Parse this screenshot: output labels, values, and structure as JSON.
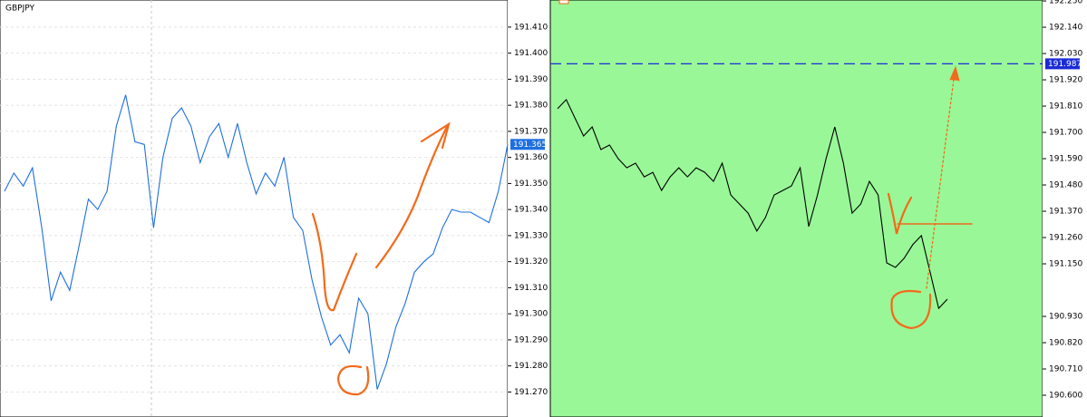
{
  "chart_data": [
    {
      "type": "line",
      "title": "GBPJPY",
      "background": "#ffffff",
      "grid": true,
      "current_price": 191.365,
      "ylim": [
        191.2604,
        191.4204
      ],
      "yticks": [
        {
          "value": 191.41,
          "label": "191.410"
        },
        {
          "value": 191.4,
          "label": "191.400"
        },
        {
          "value": 191.39,
          "label": "191.390"
        },
        {
          "value": 191.38,
          "label": "191.380"
        },
        {
          "value": 191.37,
          "label": "191.370"
        },
        {
          "value": 191.36,
          "label": "191.360"
        },
        {
          "value": 191.35,
          "label": "191.350"
        },
        {
          "value": 191.34,
          "label": "191.340"
        },
        {
          "value": 191.33,
          "label": "191.330"
        },
        {
          "value": 191.32,
          "label": "191.320"
        },
        {
          "value": 191.31,
          "label": "191.310"
        },
        {
          "value": 191.3,
          "label": "191.300"
        },
        {
          "value": 191.29,
          "label": "191.290"
        },
        {
          "value": 191.28,
          "label": "191.280"
        },
        {
          "value": 191.27,
          "label": "191.270"
        }
      ],
      "series": [
        {
          "color": "#1e6fe0",
          "values": [
            191.347,
            191.354,
            191.349,
            191.356,
            191.333,
            191.305,
            191.316,
            191.309,
            191.326,
            191.344,
            191.34,
            191.347,
            191.372,
            191.384,
            191.366,
            191.365,
            191.333,
            191.36,
            191.375,
            191.379,
            191.372,
            191.358,
            191.368,
            191.373,
            191.36,
            191.373,
            191.358,
            191.346,
            191.354,
            191.349,
            191.36,
            191.337,
            191.332,
            191.313,
            191.299,
            191.288,
            191.292,
            191.285,
            191.306,
            191.3,
            191.271,
            191.281,
            191.295,
            191.304,
            191.316,
            191.32,
            191.323,
            191.333,
            191.34,
            191.339,
            191.339,
            191.337,
            191.335,
            191.347,
            191.365
          ]
        }
      ]
    },
    {
      "type": "line",
      "background": "#99f797",
      "grid": false,
      "level": 191.987,
      "level_color": "#1a2bd6",
      "ylim": [
        190.509,
        192.254
      ],
      "yticks": [
        {
          "value": 192.25,
          "label": "192.250"
        },
        {
          "value": 192.14,
          "label": "192.140"
        },
        {
          "value": 192.03,
          "label": "192.030"
        },
        {
          "value": 191.92,
          "label": "191.920"
        },
        {
          "value": 191.81,
          "label": "191.810"
        },
        {
          "value": 191.7,
          "label": "191.700"
        },
        {
          "value": 191.59,
          "label": "191.590"
        },
        {
          "value": 191.48,
          "label": "191.480"
        },
        {
          "value": 191.37,
          "label": "191.370"
        },
        {
          "value": 191.26,
          "label": "191.260"
        },
        {
          "value": 191.15,
          "label": "191.150"
        },
        {
          "value": 190.93,
          "label": "190.930"
        },
        {
          "value": 190.82,
          "label": "190.820"
        },
        {
          "value": 190.71,
          "label": "190.710"
        },
        {
          "value": 190.6,
          "label": "190.600"
        }
      ],
      "series": [
        {
          "color": "#000000",
          "values": [
            191.799,
            191.837,
            191.761,
            191.685,
            191.723,
            191.628,
            191.647,
            191.59,
            191.552,
            191.571,
            191.514,
            191.533,
            191.457,
            191.514,
            191.552,
            191.514,
            191.552,
            191.533,
            191.495,
            191.571,
            191.438,
            191.4,
            191.362,
            191.287,
            191.344,
            191.438,
            191.457,
            191.476,
            191.552,
            191.306,
            191.438,
            191.59,
            191.723,
            191.571,
            191.362,
            191.4,
            191.495,
            191.438,
            191.154,
            191.135,
            191.173,
            191.23,
            191.268,
            191.116,
            190.964,
            191.002
          ]
        }
      ]
    }
  ]
}
